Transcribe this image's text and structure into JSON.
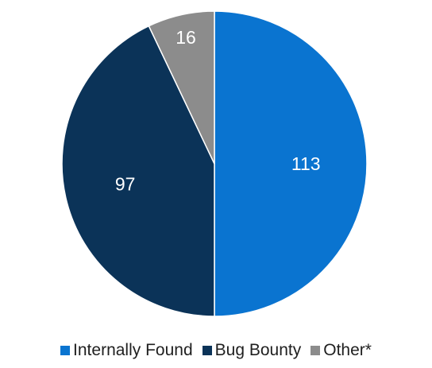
{
  "chart_data": {
    "type": "pie",
    "categories": [
      "Internally Found",
      "Bug Bounty",
      "Other*"
    ],
    "values": [
      113,
      97,
      16
    ],
    "colors": [
      "#0A74D0",
      "#0B3358",
      "#8C8C8C"
    ],
    "label_colors": [
      "#ffffff",
      "#ffffff",
      "#ffffff"
    ],
    "start": "12 o'clock",
    "direction": "clockwise",
    "legend_position": "bottom"
  }
}
